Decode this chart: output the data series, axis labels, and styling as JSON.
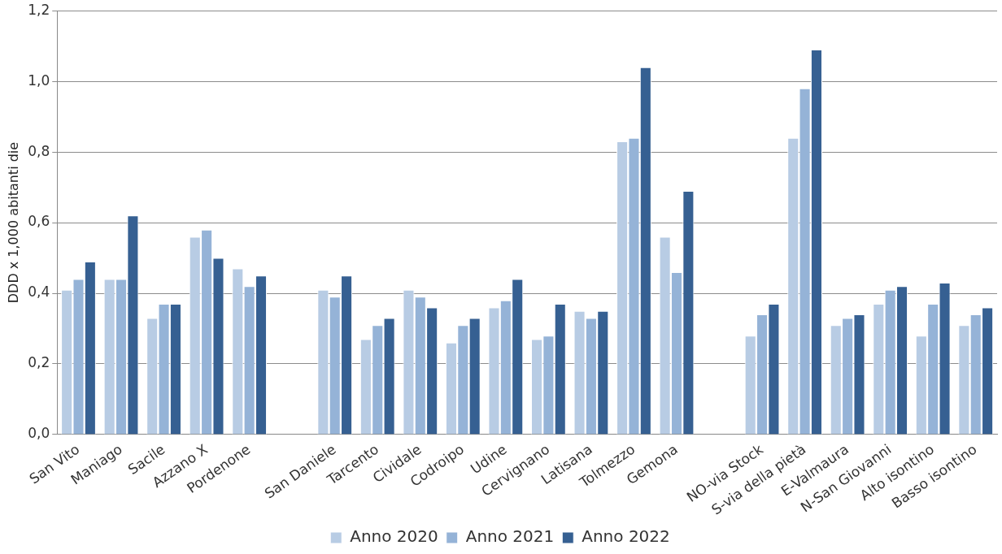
{
  "chart_data": {
    "type": "bar",
    "ylabel": "DDD x 1,000 abitanti die",
    "categories": [
      "San Vito",
      "Maniago",
      "Sacile",
      "Azzano X",
      "Pordenone",
      null,
      "San Daniele",
      "Tarcento",
      "Cividale",
      "Codroipo",
      "Udine",
      "Cervignano",
      "Latisana",
      "Tolmezzo",
      "Gemona",
      null,
      "NO-via Stock",
      "S-via della pietà",
      "E-Valmaura",
      "N-San Giovanni",
      "Alto isontino",
      "Basso isontino"
    ],
    "series": [
      {
        "name": "Anno 2020",
        "color": "#b8cce4",
        "values": [
          0.41,
          0.44,
          0.33,
          0.56,
          0.47,
          null,
          0.41,
          0.27,
          0.41,
          0.26,
          0.36,
          0.27,
          0.35,
          0.83,
          0.56,
          null,
          0.28,
          0.84,
          0.31,
          0.37,
          0.28,
          0.31
        ]
      },
      {
        "name": "Anno 2021",
        "color": "#95b3d7",
        "values": [
          0.44,
          0.44,
          0.37,
          0.58,
          0.42,
          null,
          0.39,
          0.31,
          0.39,
          0.31,
          0.38,
          0.28,
          0.33,
          0.84,
          0.46,
          null,
          0.34,
          0.98,
          0.33,
          0.41,
          0.37,
          0.34
        ]
      },
      {
        "name": "Anno 2022",
        "color": "#366092",
        "values": [
          0.49,
          0.62,
          0.37,
          0.5,
          0.45,
          null,
          0.45,
          0.33,
          0.36,
          0.33,
          0.44,
          0.37,
          0.35,
          1.04,
          0.69,
          null,
          0.37,
          1.09,
          0.34,
          0.42,
          0.43,
          0.36
        ]
      }
    ],
    "ylim": [
      0,
      1.2
    ],
    "yticks": [
      {
        "value": 0,
        "label": "0,0"
      },
      {
        "value": 0.2,
        "label": "0,2"
      },
      {
        "value": 0.4,
        "label": "0,4"
      },
      {
        "value": 0.6,
        "label": "0,6"
      },
      {
        "value": 0.8,
        "label": "0,8"
      },
      {
        "value": 1.0,
        "label": "1,0"
      },
      {
        "value": 1.2,
        "label": "1,2"
      }
    ],
    "grid": "y",
    "legend": "bottom"
  }
}
